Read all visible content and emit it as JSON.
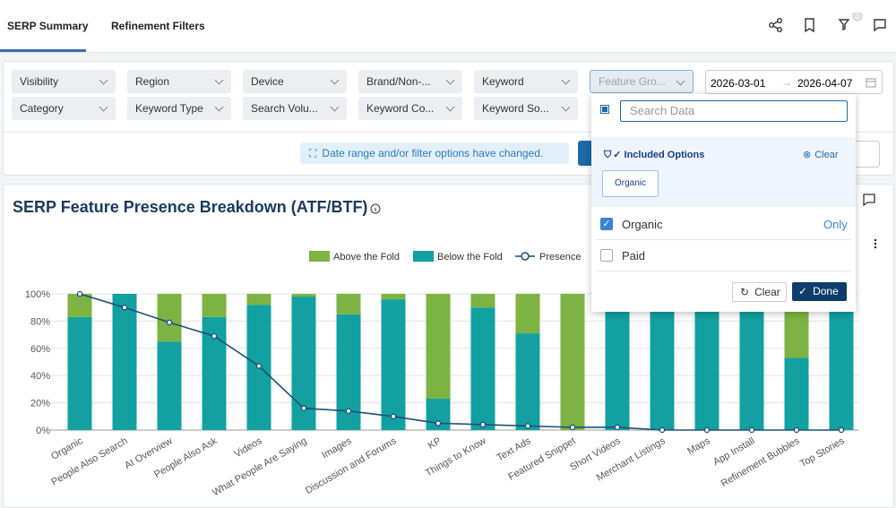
{
  "tabs": [
    "SERP Summary",
    "Refinement Filters"
  ],
  "notification_count": 0,
  "filters": {
    "row1": [
      "Visibility",
      "Region",
      "Device",
      "Brand/Non-...",
      "Keyword",
      "Feature Gro..."
    ],
    "row2": [
      "Category",
      "Keyword Type",
      "Search Volu...",
      "Keyword Co...",
      "Keyword So..."
    ]
  },
  "date_range": {
    "start": "2026-03-01",
    "end": "2026-04-07"
  },
  "notice": "Date range and/or filter options have changed.",
  "dropdown": {
    "search_placeholder": "Search Data",
    "included_heading": "✓ Included Options",
    "clear_link": "Clear",
    "chips": [
      "Organic"
    ],
    "options": [
      {
        "label": "Organic",
        "checked": true,
        "action": "Only"
      },
      {
        "label": "Paid",
        "checked": false
      }
    ],
    "buttons": [
      "Clear",
      "Done"
    ]
  },
  "chart_data": {
    "type": "bar",
    "stacked": true,
    "title": "SERP Feature Presence Breakdown (ATF/BTF)",
    "categories": [
      "Organic",
      "People Also Search",
      "AI Overview",
      "People Also Ask",
      "Videos",
      "What People Are Saying",
      "Images",
      "Discussion and Forums",
      "KP",
      "Things to Know",
      "Text Ads",
      "Featured Snippet",
      "Short Videos",
      "Merchant Listings",
      "Maps",
      "App Install",
      "Refinement Bubbles",
      "Top Stories"
    ],
    "series": [
      {
        "name": "Above the Fold",
        "color": "#7cb342",
        "values": [
          17,
          0,
          35,
          17,
          8,
          2,
          15,
          4,
          77,
          10,
          29,
          100,
          0,
          0,
          0,
          0,
          47,
          0
        ]
      },
      {
        "name": "Below the Fold",
        "color": "#12a0a0",
        "values": [
          83,
          100,
          65,
          83,
          92,
          98,
          85,
          96,
          23,
          90,
          71,
          0,
          100,
          100,
          100,
          100,
          53,
          100
        ]
      },
      {
        "name": "Presence",
        "type": "line",
        "color": "#1f4e79",
        "values": [
          100,
          90,
          79,
          69,
          47,
          16,
          14,
          10,
          5,
          4,
          3,
          2,
          2,
          0,
          0,
          0,
          0,
          0
        ]
      }
    ],
    "ylim": [
      0,
      100
    ],
    "yticks": [
      {
        "value": 0,
        "label": "0%"
      },
      {
        "value": 20,
        "label": "20%"
      },
      {
        "value": 40,
        "label": "40%"
      },
      {
        "value": 60,
        "label": "60%"
      },
      {
        "value": 80,
        "label": "80%"
      },
      {
        "value": 100,
        "label": "100%"
      }
    ],
    "grid": true
  }
}
